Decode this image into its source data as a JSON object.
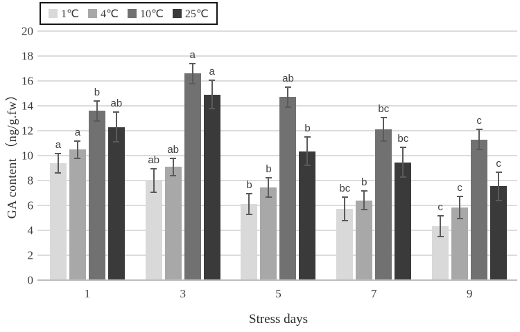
{
  "chart_data": {
    "type": "bar",
    "title": "",
    "xlabel": "Stress days",
    "ylabel": "GA content （ng/g.fw）",
    "ylim": [
      0,
      20
    ],
    "ytick_step": 2,
    "grid": true,
    "legend_position": "top-left",
    "categories": [
      "1",
      "3",
      "5",
      "7",
      "9"
    ],
    "series": [
      {
        "name": "1℃",
        "color": "#d9d9d9",
        "values": [
          9.4,
          8.0,
          6.1,
          5.75,
          4.35
        ],
        "errors": [
          0.85,
          1.0,
          0.9,
          1.0,
          0.9
        ],
        "sig_letters": [
          "a",
          "ab",
          "b",
          "bc",
          "c"
        ]
      },
      {
        "name": "4℃",
        "color": "#a8a8a8",
        "values": [
          10.5,
          9.1,
          7.45,
          6.4,
          5.85
        ],
        "errors": [
          0.75,
          0.75,
          0.85,
          0.8,
          0.95
        ],
        "sig_letters": [
          "a",
          "ab",
          "b",
          "b",
          "c"
        ]
      },
      {
        "name": "10℃",
        "color": "#717171",
        "values": [
          13.6,
          16.6,
          14.7,
          12.1,
          11.3
        ],
        "errors": [
          0.85,
          0.85,
          0.85,
          1.0,
          0.85
        ],
        "sig_letters": [
          "b",
          "a",
          "ab",
          "bc",
          "c"
        ]
      },
      {
        "name": "25℃",
        "color": "#3a3a3a",
        "values": [
          12.3,
          14.9,
          10.35,
          9.45,
          7.55
        ],
        "errors": [
          1.25,
          1.2,
          1.2,
          1.25,
          1.2
        ],
        "sig_letters": [
          "ab",
          "a",
          "b",
          "bc",
          "c"
        ]
      }
    ],
    "style": {
      "error_bar_color": "#5a5a5a",
      "gridline_color": "#dcdcdc",
      "axis_line_color": "#bdbdbd",
      "tick_label_color": "#3a3a3a",
      "letter_color": "#3f3f3f",
      "legend_border_color": "#141414"
    }
  }
}
